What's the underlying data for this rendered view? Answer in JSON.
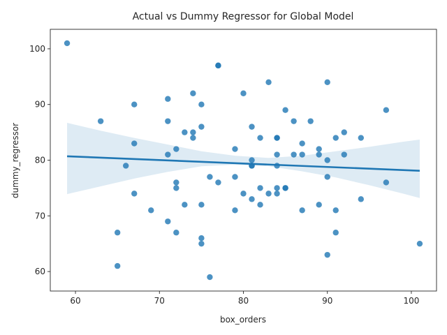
{
  "chart_data": {
    "type": "scatter",
    "title": "Actual vs Dummy Regressor for Global Model",
    "xlabel": "box_orders",
    "ylabel": "dummy_regressor",
    "xlim": [
      57,
      103
    ],
    "ylim": [
      56.5,
      103.5
    ],
    "xticks": [
      60,
      70,
      80,
      90,
      100
    ],
    "yticks": [
      60,
      70,
      80,
      90,
      100
    ],
    "grid": false,
    "legend": "none",
    "point_color": "#1f77b4",
    "line_color": "#1f77b4",
    "band_color": "#1f77b4",
    "points": [
      [
        59,
        101
      ],
      [
        77,
        97
      ],
      [
        77,
        97
      ],
      [
        83,
        94
      ],
      [
        90,
        94
      ],
      [
        74,
        92
      ],
      [
        80,
        92
      ],
      [
        71,
        91
      ],
      [
        67,
        90
      ],
      [
        75,
        90
      ],
      [
        85,
        89
      ],
      [
        97,
        89
      ],
      [
        63,
        87
      ],
      [
        71,
        87
      ],
      [
        86,
        87
      ],
      [
        88,
        87
      ],
      [
        75,
        86
      ],
      [
        81,
        86
      ],
      [
        73,
        85
      ],
      [
        74,
        85
      ],
      [
        92,
        85
      ],
      [
        74,
        84
      ],
      [
        82,
        84
      ],
      [
        84,
        84
      ],
      [
        84,
        84
      ],
      [
        91,
        84
      ],
      [
        94,
        84
      ],
      [
        67,
        83
      ],
      [
        87,
        83
      ],
      [
        72,
        82
      ],
      [
        79,
        82
      ],
      [
        89,
        82
      ],
      [
        71,
        81
      ],
      [
        84,
        81
      ],
      [
        86,
        81
      ],
      [
        87,
        81
      ],
      [
        89,
        81
      ],
      [
        92,
        81
      ],
      [
        81,
        80
      ],
      [
        90,
        80
      ],
      [
        66,
        79
      ],
      [
        81,
        79
      ],
      [
        81,
        79
      ],
      [
        84,
        79
      ],
      [
        76,
        77
      ],
      [
        79,
        77
      ],
      [
        90,
        77
      ],
      [
        72,
        76
      ],
      [
        77,
        76
      ],
      [
        97,
        76
      ],
      [
        72,
        75
      ],
      [
        82,
        75
      ],
      [
        84,
        75
      ],
      [
        85,
        75
      ],
      [
        85,
        75
      ],
      [
        67,
        74
      ],
      [
        80,
        74
      ],
      [
        83,
        74
      ],
      [
        84,
        74
      ],
      [
        81,
        73
      ],
      [
        94,
        73
      ],
      [
        73,
        72
      ],
      [
        75,
        72
      ],
      [
        82,
        72
      ],
      [
        89,
        72
      ],
      [
        69,
        71
      ],
      [
        79,
        71
      ],
      [
        87,
        71
      ],
      [
        91,
        71
      ],
      [
        71,
        69
      ],
      [
        65,
        67
      ],
      [
        72,
        67
      ],
      [
        91,
        67
      ],
      [
        75,
        66
      ],
      [
        75,
        65
      ],
      [
        101,
        65
      ],
      [
        90,
        63
      ],
      [
        65,
        61
      ],
      [
        76,
        59
      ]
    ],
    "regression_line": {
      "x": [
        59,
        101
      ],
      "y": [
        80.7,
        78.1
      ]
    },
    "confidence_band": {
      "x": [
        59,
        63,
        67,
        71,
        75,
        79,
        83,
        87,
        91,
        95,
        99,
        101
      ],
      "lower": [
        73.9,
        75.3,
        76.7,
        77.9,
        78.9,
        79.2,
        78.9,
        78.0,
        76.9,
        75.5,
        74.0,
        73.2
      ],
      "upper": [
        86.7,
        85.3,
        84.0,
        82.8,
        81.6,
        80.8,
        80.4,
        80.8,
        81.6,
        82.4,
        83.3,
        83.7
      ]
    }
  }
}
